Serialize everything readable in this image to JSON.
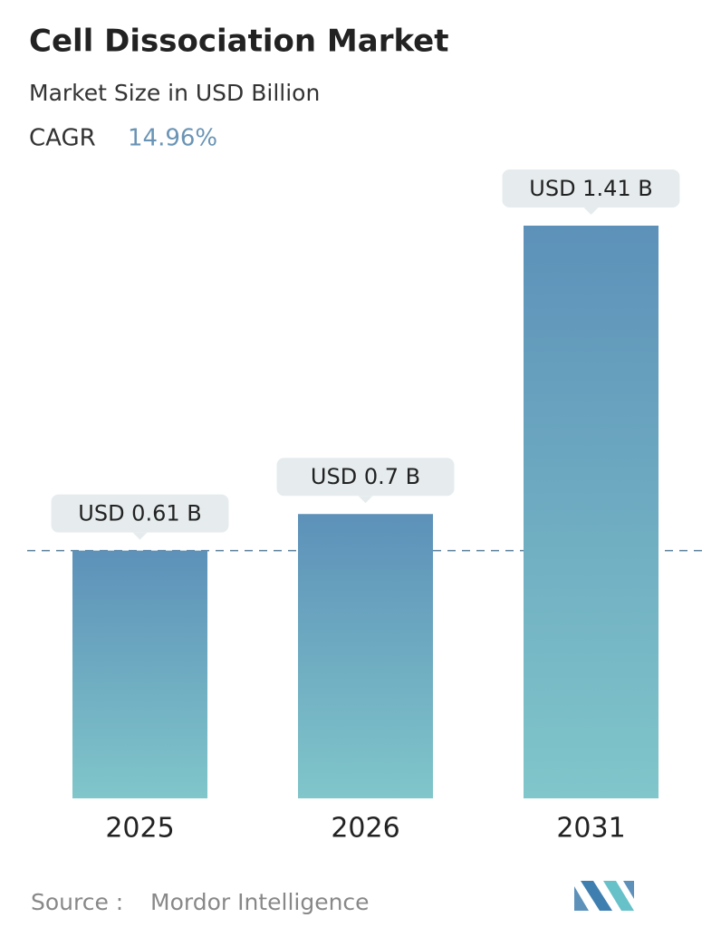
{
  "chart_data": {
    "type": "bar",
    "title": "Cell Dissociation Market",
    "subtitle": "Market Size in USD Billion",
    "cagr_label": "CAGR",
    "cagr": "14.96%",
    "categories": [
      "2025",
      "2026",
      "2031"
    ],
    "values": [
      0.61,
      0.7,
      1.41
    ],
    "value_labels": [
      "USD 0.61 B",
      "USD 0.7 B",
      "USD 1.41 B"
    ],
    "ylim": [
      0,
      1.41
    ],
    "color_top": "#5d91b9",
    "color_bottom": "#80c6ca",
    "source_label": "Source :",
    "source": "Mordor Intelligence"
  }
}
